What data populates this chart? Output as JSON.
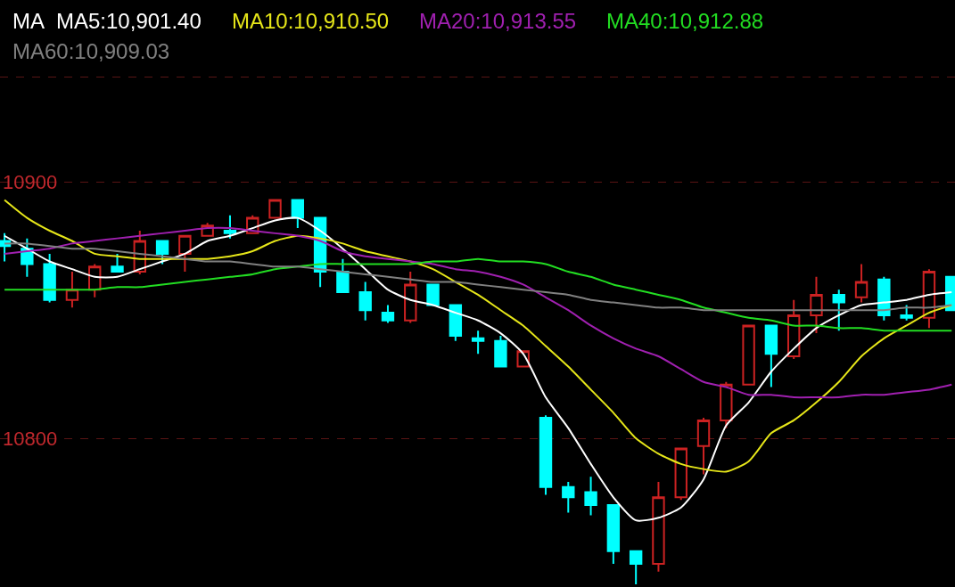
{
  "chart_data": {
    "type": "candlestick",
    "legend_title": "MA",
    "legend": "top",
    "grid": "y",
    "categories": [
      null,
      null,
      null,
      null,
      null,
      null,
      null,
      null,
      null,
      null,
      null,
      null,
      null,
      null,
      null,
      null,
      null,
      null,
      null,
      null,
      null,
      null,
      null,
      null,
      null,
      null,
      null,
      null,
      null,
      null,
      null,
      null,
      null,
      null,
      null,
      null,
      null,
      null,
      null,
      null,
      null,
      null,
      null
    ],
    "ylim": [
      10742,
      10971
    ],
    "yticks": [
      10800,
      10900,
      {
        "value": 10941,
        "label": null
      }
    ],
    "series": [
      {
        "type": "candlestick",
        "colors": [
          "#00ffff",
          "#00ffff",
          "#00ffff",
          "#cc2222",
          "#cc2222",
          "#00ffff",
          "#cc2222",
          "#00ffff",
          "#cc2222",
          "#cc2222",
          "#00ffff",
          "#cc2222",
          "#cc2222",
          "#00ffff",
          "#00ffff",
          "#00ffff",
          "#00ffff",
          "#00ffff",
          "#cc2222",
          "#00ffff",
          "#00ffff",
          "#00ffff",
          "#00ffff",
          "#cc2222",
          "#00ffff",
          "#00ffff",
          "#00ffff",
          "#00ffff",
          "#00ffff",
          "#cc2222",
          "#cc2222",
          "#cc2222",
          "#cc2222",
          "#cc2222",
          "#00ffff",
          "#cc2222",
          "#cc2222",
          "#00ffff",
          "#cc2222",
          "#00ffff",
          "#00ffff",
          "#cc2222",
          "#00ffff"
        ],
        "ohlc": [
          [
            10877,
            10880,
            10869,
            10875
          ],
          [
            10874,
            10878,
            10863,
            10868
          ],
          [
            10868,
            10872,
            10853,
            10854
          ],
          [
            10854,
            10865,
            10851,
            10858
          ],
          [
            10858,
            10868,
            10855,
            10867
          ],
          [
            10867,
            10872,
            10865,
            10865
          ],
          [
            10865,
            10881,
            10864,
            10877
          ],
          [
            10877,
            10877,
            10868,
            10872
          ],
          [
            10872,
            10879,
            10865,
            10879
          ],
          [
            10879,
            10884,
            10879,
            10883
          ],
          [
            10881,
            10887,
            10878,
            10880
          ],
          [
            10880,
            10887,
            10880,
            10886
          ],
          [
            10886,
            10893,
            10886,
            10893
          ],
          [
            10893,
            10893,
            10882,
            10886
          ],
          [
            10886,
            10886,
            10859,
            10865
          ],
          [
            10865,
            10870,
            10857,
            10857
          ],
          [
            10857,
            10861,
            10846,
            10850
          ],
          [
            10849,
            10852,
            10845,
            10846
          ],
          [
            10846,
            10865,
            10845,
            10860
          ],
          [
            10860,
            10860,
            10852,
            10852
          ],
          [
            10852,
            10852,
            10838,
            10840
          ],
          [
            10839,
            10842,
            10833,
            10838
          ],
          [
            10838,
            10840,
            10828,
            10828
          ],
          [
            10828,
            10834,
            10828,
            10834
          ],
          [
            10808,
            10809,
            10778,
            10781
          ],
          [
            10781,
            10783,
            10771,
            10777
          ],
          [
            10779,
            10785,
            10770,
            10774
          ],
          [
            10774,
            10774,
            10751,
            10756
          ],
          [
            10756,
            10756,
            10743,
            10751
          ],
          [
            10751,
            10783,
            10748,
            10777
          ],
          [
            10777,
            10796,
            10776,
            10796
          ],
          [
            10797,
            10808,
            10786,
            10807
          ],
          [
            10807,
            10822,
            10804,
            10821
          ],
          [
            10821,
            10844,
            10821,
            10844
          ],
          [
            10844,
            10844,
            10820,
            10833
          ],
          [
            10832,
            10854,
            10831,
            10848
          ],
          [
            10848,
            10863,
            10841,
            10856
          ],
          [
            10856,
            10858,
            10842,
            10853
          ],
          [
            10855,
            10868,
            10853,
            10861
          ],
          [
            10862,
            10863,
            10846,
            10848
          ],
          [
            10848,
            10852,
            10846,
            10847
          ],
          [
            10847,
            10866,
            10843,
            10865
          ],
          [
            10863,
            10863,
            10850,
            10850
          ]
        ]
      },
      {
        "type": "line",
        "name": "MA5:10,901.40",
        "color": "#ffffff",
        "values": [
          10879,
          10874,
          10869,
          10866,
          10863,
          10863,
          10866,
          10869,
          10872,
          10877,
          10879,
          10882,
          10885,
          10886,
          10881,
          10874,
          10866,
          10858,
          10854,
          10852,
          10849,
          10846,
          10841,
          10833,
          10816,
          10804,
          10790,
          10777,
          10768,
          10769,
          10773,
          10784,
          10805,
          10814,
          10826,
          10835,
          10843,
          10848,
          10852,
          10853,
          10854,
          10856,
          10857
        ]
      },
      {
        "type": "line",
        "name": "MA10:10,910.50",
        "color": "#e6e619",
        "values": [
          10893,
          10886,
          10881,
          10877,
          10872,
          10871,
          10870,
          10870,
          10870,
          10870,
          10871,
          10873,
          10877,
          10879,
          10878,
          10876,
          10873,
          10871,
          10869,
          10866,
          10861,
          10856,
          10850,
          10844,
          10836,
          10828,
          10819,
          10810,
          10800,
          10794,
          10790,
          10788,
          10787,
          10791,
          10802,
          10807,
          10814,
          10822,
          10832,
          10839,
          10844,
          10849,
          10852
        ]
      },
      {
        "type": "line",
        "name": "MA20:10,913.55",
        "color": "#a020b0",
        "values": [
          10872,
          10873,
          10874,
          10876,
          10877,
          10878,
          10879,
          10880,
          10881,
          10882,
          10882,
          10881,
          10880,
          10879,
          10877,
          10873,
          10871,
          10870,
          10869,
          10868,
          10866,
          10865,
          10863,
          10860,
          10855,
          10850,
          10844,
          10839,
          10835,
          10832,
          10827,
          10822,
          10820,
          10817,
          10817,
          10816,
          10816,
          10816,
          10817,
          10817,
          10818,
          10819,
          10821
        ]
      },
      {
        "type": "line",
        "name": "MA40:10,912.88",
        "color": "#22dd22",
        "values": [
          10858,
          10858,
          10858,
          10858,
          10858,
          10859,
          10859,
          10860,
          10861,
          10862,
          10863,
          10864,
          10866,
          10867,
          10868,
          10868,
          10868,
          10868,
          10868,
          10869,
          10869,
          10870,
          10869,
          10869,
          10868,
          10865,
          10863,
          10860,
          10858,
          10856,
          10854,
          10851,
          10849,
          10847,
          10846,
          10844,
          10844,
          10843,
          10843,
          10842,
          10842,
          10842,
          10842
        ]
      },
      {
        "type": "line",
        "name": "MA60:10,909.03",
        "color": "#808080",
        "values": [
          10876,
          10876,
          10875,
          10874,
          10874,
          10873,
          10872,
          10871,
          10870,
          10869,
          10869,
          10868,
          10867,
          10867,
          10866,
          10865,
          10864,
          10863,
          10862,
          10861,
          10861,
          10860,
          10859,
          10858,
          10857,
          10856,
          10854,
          10853,
          10852,
          10851,
          10851,
          10850,
          10850,
          10850,
          10850,
          10850,
          10850,
          10850,
          10850,
          10850,
          10851,
          10851,
          10852
        ]
      }
    ]
  }
}
